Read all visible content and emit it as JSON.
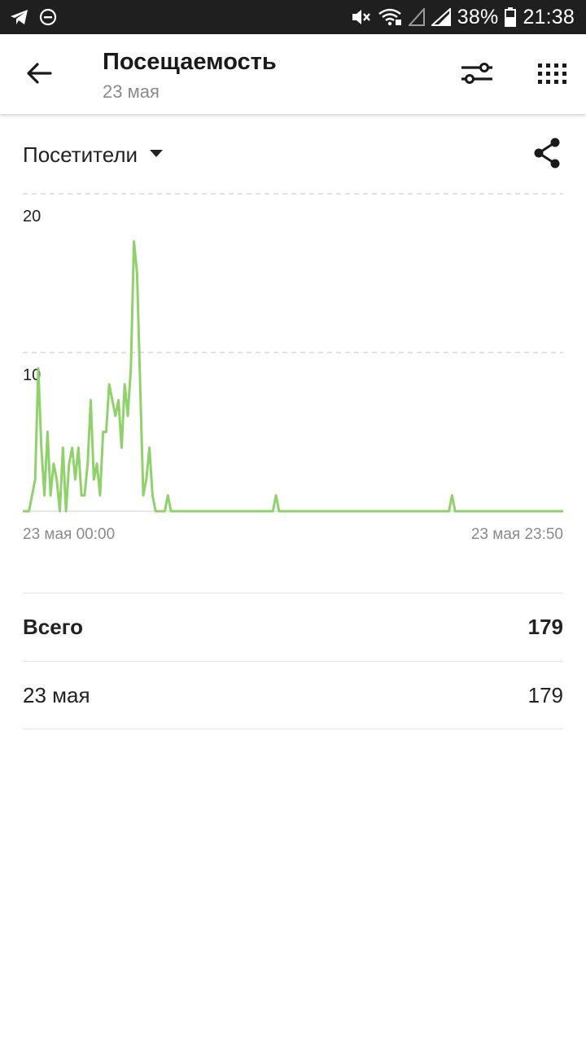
{
  "status_bar": {
    "battery": "38%",
    "time": "21:38",
    "left_icons": [
      "telegram-icon",
      "do-not-disturb-icon"
    ],
    "right_icons": [
      "mute-icon",
      "wifi-icon",
      "signal-empty-icon",
      "signal-icon",
      "battery-icon"
    ]
  },
  "app_bar": {
    "title": "Посещаемость",
    "subtitle": "23 мая",
    "icons": [
      "back-arrow-icon",
      "filter-sliders-icon",
      "grid-dots-icon"
    ]
  },
  "metric": {
    "label": "Посетители",
    "icons": [
      "dropdown-triangle-icon",
      "share-icon"
    ]
  },
  "chart_data": {
    "type": "line",
    "color": "#8fd16a",
    "grid": "dashed horizontal",
    "ylim": [
      0,
      20
    ],
    "y_ticks": [
      "20",
      "10"
    ],
    "x_labels": [
      "23 мая 00:00",
      "23 мая 23:50"
    ],
    "x_first": "23 мая 00:00",
    "x_last": "23 мая 23:50",
    "interval_minutes": 10,
    "values": [
      0,
      0,
      0,
      1,
      2,
      9,
      4,
      1,
      5,
      1,
      3,
      2,
      0,
      4,
      0,
      3,
      4,
      2,
      4,
      1,
      1,
      3,
      7,
      2,
      3,
      1,
      5,
      5,
      8,
      7,
      6,
      7,
      4,
      8,
      6,
      9,
      17,
      15,
      8,
      1,
      2,
      4,
      1,
      0,
      0,
      0,
      0,
      1,
      0,
      0,
      0,
      0,
      0,
      0,
      0,
      0,
      0,
      0,
      0,
      0,
      0,
      0,
      0,
      0,
      0,
      0,
      0,
      0,
      0,
      0,
      0,
      0,
      0,
      0,
      0,
      0,
      0,
      0,
      0,
      0,
      0,
      0,
      1,
      0,
      0,
      0,
      0,
      0,
      0,
      0,
      0,
      0,
      0,
      0,
      0,
      0,
      0,
      0,
      0,
      0,
      0,
      0,
      0,
      0,
      0,
      0,
      0,
      0,
      0,
      0,
      0,
      0,
      0,
      0,
      0,
      0,
      0,
      0,
      0,
      0,
      0,
      0,
      0,
      0,
      0,
      0,
      0,
      0,
      0,
      0,
      0,
      0,
      0,
      0,
      0,
      0,
      0,
      0,
      0,
      1,
      0,
      0,
      0,
      0,
      0,
      0,
      0,
      0,
      0,
      0,
      0,
      0,
      0,
      0,
      0,
      0,
      0,
      0,
      0,
      0,
      0,
      0,
      0,
      0,
      0,
      0,
      0,
      0,
      0,
      0,
      0,
      0,
      0,
      0,
      0,
      0
    ]
  },
  "totals": {
    "total_label": "Всего",
    "total_value": "179",
    "date_label": "23 мая",
    "date_value": "179"
  }
}
